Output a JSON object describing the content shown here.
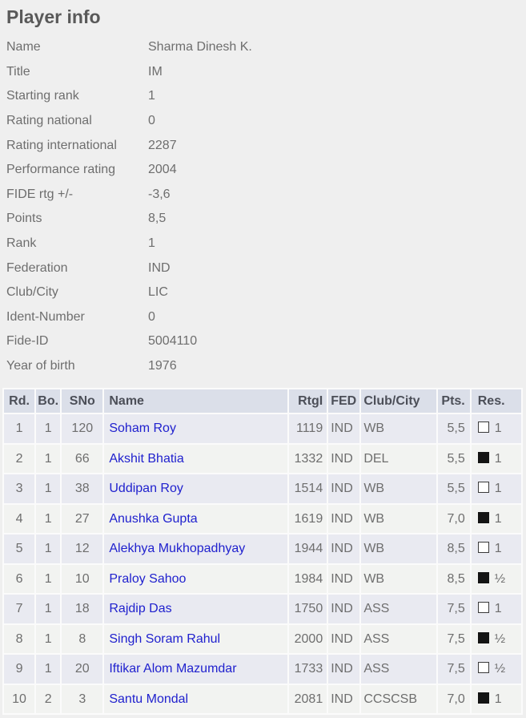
{
  "page": {
    "title": "Player info"
  },
  "colors": {
    "page_bg": "#efefef",
    "table_gap": "#fbfbfb",
    "header_bg": "#dbdfe9",
    "row_odd_bg": "#e9eaf1",
    "row_even_bg": "#f2f3f1",
    "header_text": "#4c4f58",
    "body_text": "#6e6e6e",
    "title_text": "#595959",
    "link_blue": "#2021ce",
    "white_square": "#ffffff",
    "black_square": "#141414"
  },
  "player_info": {
    "fields": [
      {
        "label": "Name",
        "value": "Sharma Dinesh K."
      },
      {
        "label": "Title",
        "value": "IM"
      },
      {
        "label": "Starting rank",
        "value": "1"
      },
      {
        "label": "Rating national",
        "value": "0"
      },
      {
        "label": "Rating international",
        "value": "2287"
      },
      {
        "label": "Performance rating",
        "value": "2004"
      },
      {
        "label": "FIDE rtg +/-",
        "value": "-3,6"
      },
      {
        "label": "Points",
        "value": "8,5"
      },
      {
        "label": "Rank",
        "value": "1"
      },
      {
        "label": "Federation",
        "value": "IND"
      },
      {
        "label": "Club/City",
        "value": "LIC"
      },
      {
        "label": "Ident-Number",
        "value": "0"
      },
      {
        "label": "Fide-ID",
        "value": "5004110"
      },
      {
        "label": "Year of birth",
        "value": "1976"
      }
    ]
  },
  "results_table": {
    "headers": [
      "Rd.",
      "Bo.",
      "SNo",
      "Name",
      "RtgI",
      "FED",
      "Club/City",
      "Pts.",
      "Res."
    ],
    "rows": [
      {
        "rd": "1",
        "bo": "1",
        "sno": "120",
        "name": "Soham Roy",
        "rtgi": "1119",
        "fed": "IND",
        "club_city": "WB",
        "pts": "5,5",
        "piece_color": "white",
        "result": "1"
      },
      {
        "rd": "2",
        "bo": "1",
        "sno": "66",
        "name": "Akshit Bhatia",
        "rtgi": "1332",
        "fed": "IND",
        "club_city": "DEL",
        "pts": "5,5",
        "piece_color": "black",
        "result": "1"
      },
      {
        "rd": "3",
        "bo": "1",
        "sno": "38",
        "name": "Uddipan Roy",
        "rtgi": "1514",
        "fed": "IND",
        "club_city": "WB",
        "pts": "5,5",
        "piece_color": "white",
        "result": "1"
      },
      {
        "rd": "4",
        "bo": "1",
        "sno": "27",
        "name": "Anushka Gupta",
        "rtgi": "1619",
        "fed": "IND",
        "club_city": "WB",
        "pts": "7,0",
        "piece_color": "black",
        "result": "1"
      },
      {
        "rd": "5",
        "bo": "1",
        "sno": "12",
        "name": "Alekhya Mukhopadhyay",
        "rtgi": "1944",
        "fed": "IND",
        "club_city": "WB",
        "pts": "8,5",
        "piece_color": "white",
        "result": "1"
      },
      {
        "rd": "6",
        "bo": "1",
        "sno": "10",
        "name": "Praloy Sahoo",
        "rtgi": "1984",
        "fed": "IND",
        "club_city": "WB",
        "pts": "8,5",
        "piece_color": "black",
        "result": "½"
      },
      {
        "rd": "7",
        "bo": "1",
        "sno": "18",
        "name": "Rajdip Das",
        "rtgi": "1750",
        "fed": "IND",
        "club_city": "ASS",
        "pts": "7,5",
        "piece_color": "white",
        "result": "1"
      },
      {
        "rd": "8",
        "bo": "1",
        "sno": "8",
        "name": "Singh Soram Rahul",
        "rtgi": "2000",
        "fed": "IND",
        "club_city": "ASS",
        "pts": "7,5",
        "piece_color": "black",
        "result": "½"
      },
      {
        "rd": "9",
        "bo": "1",
        "sno": "20",
        "name": "Iftikar Alom Mazumdar",
        "rtgi": "1733",
        "fed": "IND",
        "club_city": "ASS",
        "pts": "7,5",
        "piece_color": "white",
        "result": "½"
      },
      {
        "rd": "10",
        "bo": "2",
        "sno": "3",
        "name": "Santu Mondal",
        "rtgi": "2081",
        "fed": "IND",
        "club_city": "CCSCSB",
        "pts": "7,0",
        "piece_color": "black",
        "result": "1"
      }
    ]
  }
}
